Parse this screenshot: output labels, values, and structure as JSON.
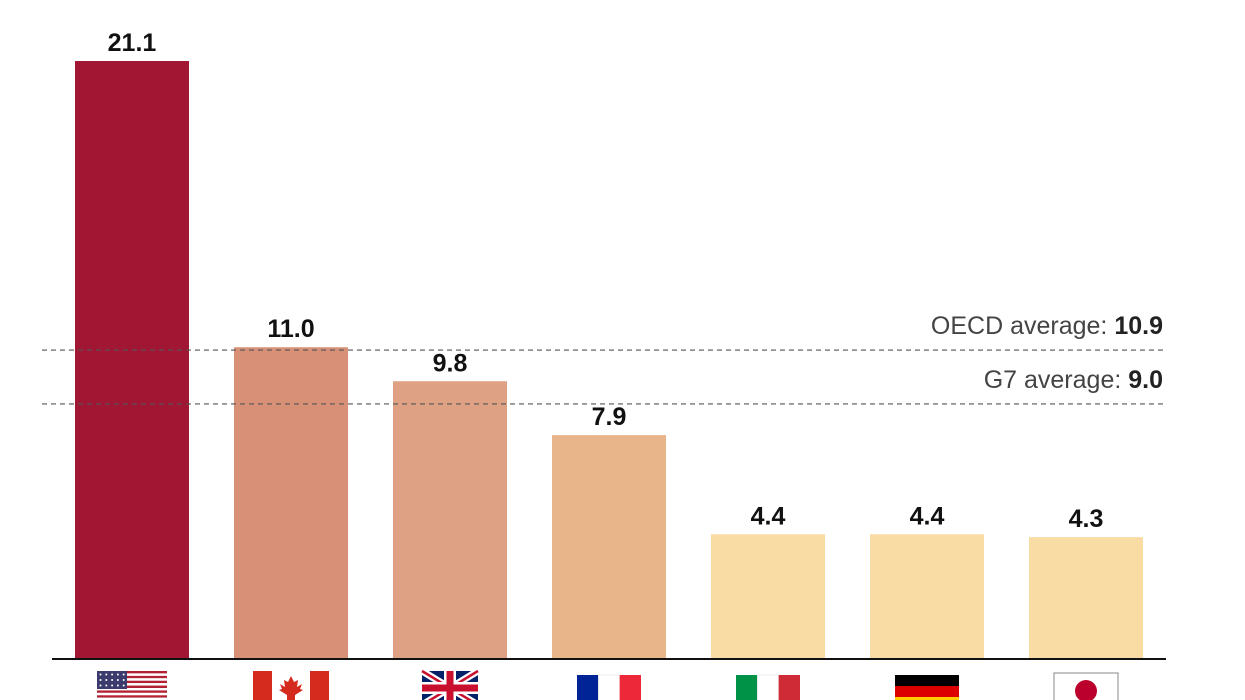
{
  "chart_data": {
    "type": "bar",
    "categories": [
      "United States",
      "Canada",
      "United Kingdom",
      "France",
      "Italy",
      "Germany",
      "Japan"
    ],
    "category_icons": [
      "us-flag-icon",
      "canada-flag-icon",
      "uk-flag-icon",
      "france-flag-icon",
      "italy-flag-icon",
      "germany-flag-icon",
      "japan-flag-icon"
    ],
    "values": [
      21.1,
      11.0,
      9.8,
      7.9,
      4.4,
      4.4,
      4.3
    ],
    "value_labels": [
      "21.1",
      "11.0",
      "9.8",
      "7.9",
      "4.4",
      "4.4",
      "4.3"
    ],
    "bar_colors": [
      "#a11633",
      "#d89077",
      "#dfa183",
      "#e8b48a",
      "#f8dca3",
      "#f8dca3",
      "#f8dca3"
    ],
    "title": "",
    "xlabel": "",
    "ylabel": "",
    "ylim": [
      0,
      21.1
    ],
    "grid": false,
    "reference_lines": [
      {
        "label": "OECD average: ",
        "value_text": "10.9",
        "value": 10.9
      },
      {
        "label": "G7 average: ",
        "value_text": "9.0",
        "value": 9.0
      }
    ]
  }
}
